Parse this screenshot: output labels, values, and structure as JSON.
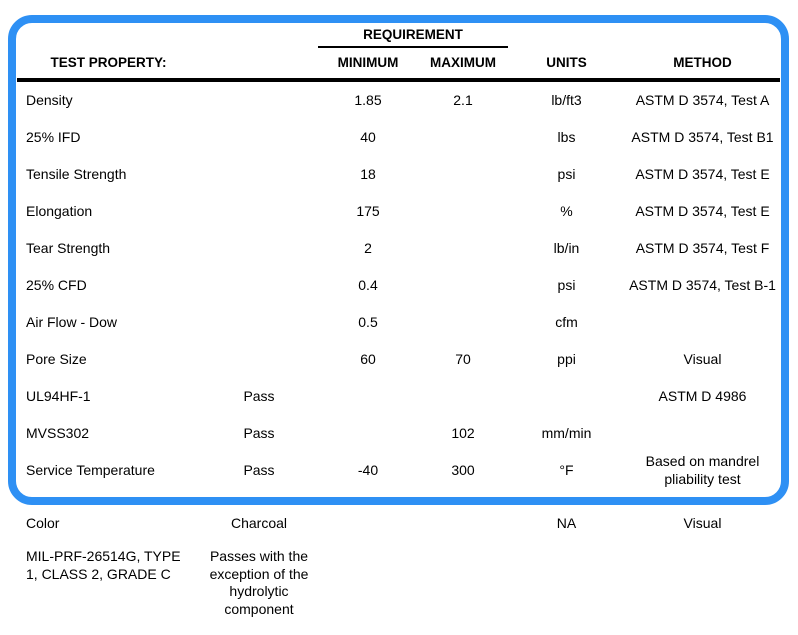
{
  "colors": {
    "border_accent": "#2e90f4",
    "rule": "#000000",
    "text": "#000000",
    "background": "#ffffff"
  },
  "table": {
    "requirement_group_label": "REQUIREMENT",
    "columns": {
      "property": "TEST PROPERTY:",
      "minimum": "MINIMUM",
      "maximum": "MAXIMUM",
      "units": "UNITS",
      "method": "METHOD"
    },
    "rows": [
      {
        "property": "Density",
        "result": "",
        "minimum": "1.85",
        "maximum": "2.1",
        "units": "lb/ft3",
        "method": "ASTM D 3574, Test A"
      },
      {
        "property": "25% IFD",
        "result": "",
        "minimum": "40",
        "maximum": "",
        "units": "lbs",
        "method": "ASTM D 3574, Test B1"
      },
      {
        "property": "Tensile Strength",
        "result": "",
        "minimum": "18",
        "maximum": "",
        "units": "psi",
        "method": "ASTM D 3574, Test E"
      },
      {
        "property": "Elongation",
        "result": "",
        "minimum": "175",
        "maximum": "",
        "units": "%",
        "method": "ASTM D 3574, Test E"
      },
      {
        "property": "Tear Strength",
        "result": "",
        "minimum": "2",
        "maximum": "",
        "units": "lb/in",
        "method": "ASTM D 3574, Test F"
      },
      {
        "property": "25% CFD",
        "result": "",
        "minimum": "0.4",
        "maximum": "",
        "units": "psi",
        "method": "ASTM D 3574, Test B-1"
      },
      {
        "property": "Air Flow - Dow",
        "result": "",
        "minimum": "0.5",
        "maximum": "",
        "units": "cfm",
        "method": ""
      },
      {
        "property": "Pore Size",
        "result": "",
        "minimum": "60",
        "maximum": "70",
        "units": "ppi",
        "method": "Visual"
      },
      {
        "property": "UL94HF-1",
        "result": "Pass",
        "minimum": "",
        "maximum": "",
        "units": "",
        "method": "ASTM D 4986"
      },
      {
        "property": "MVSS302",
        "result": "Pass",
        "minimum": "",
        "maximum": "102",
        "units": "mm/min",
        "method": ""
      },
      {
        "property": "Service Temperature",
        "result": "Pass",
        "minimum": "-40",
        "maximum": "300",
        "units": "°F",
        "method": "Based on mandrel pliability test"
      }
    ],
    "footer_rows": [
      {
        "property": "Color",
        "result": "Charcoal",
        "minimum": "",
        "maximum": "",
        "units": "NA",
        "method": "Visual"
      },
      {
        "property": "MIL-PRF-26514G, TYPE 1, CLASS 2, GRADE C",
        "result": "Passes with the exception of the hydrolytic component",
        "minimum": "",
        "maximum": "",
        "units": "",
        "method": ""
      }
    ]
  }
}
